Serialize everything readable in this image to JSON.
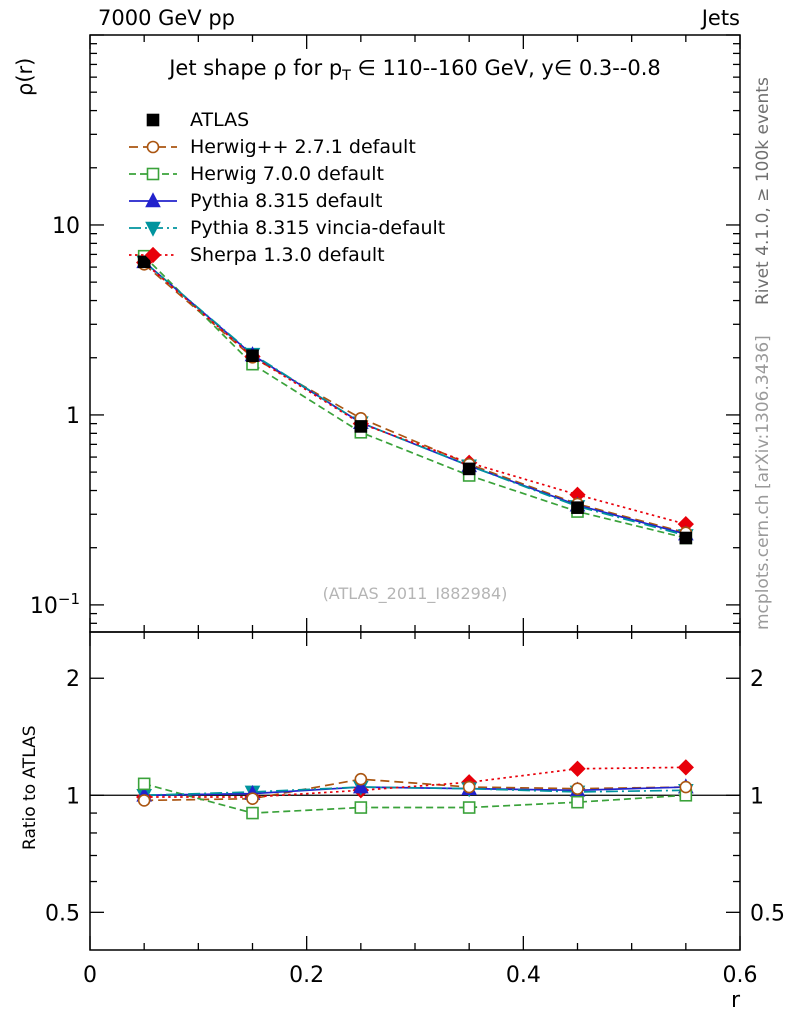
{
  "header": {
    "left_label": "7000 GeV pp",
    "right_label": "Jets"
  },
  "side_labels": {
    "rivet": "Rivet 4.1.0, ≥ 100k events",
    "mcplots": "mcplots.cern.ch [arXiv:1306.3436]"
  },
  "watermark": "(ATLAS_2011_I882984)",
  "title": {
    "pre": "Jet shape ρ for p",
    "sub": "T",
    "post": " ∈ 110--160 GeV, y∈ 0.3--0.8"
  },
  "chart_data": {
    "type": "line",
    "title": "Jet shape ρ for pT ∈ 110--160 GeV, y∈ 0.3--0.8",
    "xlabel": "r",
    "ylabel": "ρ(r)",
    "ratio_ylabel": "Ratio to ATLAS",
    "x": [
      0.05,
      0.15,
      0.25,
      0.35,
      0.45,
      0.55
    ],
    "xlim": [
      0,
      0.6
    ],
    "x_ticks": [
      {
        "v": 0,
        "label": "0"
      },
      {
        "v": 0.2,
        "label": "0.2"
      },
      {
        "v": 0.4,
        "label": "0.4"
      },
      {
        "v": 0.6,
        "label": "0.6"
      }
    ],
    "x_minor_step": 0.05,
    "ylim": [
      0.072,
      100
    ],
    "y_scale": "log",
    "y_ticks": [
      {
        "v": 10,
        "label": "10"
      },
      {
        "v": 1,
        "label": "1"
      },
      {
        "v": 0.1,
        "label": "10",
        "exp": "−1"
      }
    ],
    "ratio_ylim": [
      0.4,
      2.63
    ],
    "ratio_scale": "log",
    "ratio_ticks": [
      {
        "v": 2,
        "label": "2"
      },
      {
        "v": 1,
        "label": "1"
      },
      {
        "v": 0.5,
        "label": "0.5"
      }
    ],
    "ratio_minor_ticks": [
      0.6,
      0.7,
      0.8,
      0.9
    ],
    "series": [
      {
        "name": "ATLAS",
        "color": "#000000",
        "marker": "square",
        "fill": "filled",
        "line": "none",
        "values": [
          6.4,
          2.05,
          0.87,
          0.52,
          0.325,
          0.225
        ],
        "ratio": null
      },
      {
        "name": "Herwig++ 2.7.1 default",
        "color": "#aa5511",
        "marker": "circle",
        "fill": "open",
        "line": "dashed",
        "values": [
          6.21,
          2.01,
          0.96,
          0.55,
          0.34,
          0.24
        ],
        "ratio": [
          0.97,
          0.98,
          1.1,
          1.05,
          1.04,
          1.05
        ]
      },
      {
        "name": "Herwig 7.0.0 default",
        "color": "#3aa23a",
        "marker": "square",
        "fill": "open",
        "line": "dashed2",
        "values": [
          6.85,
          1.85,
          0.81,
          0.48,
          0.31,
          0.225
        ],
        "ratio": [
          1.07,
          0.9,
          0.93,
          0.93,
          0.96,
          1.0
        ]
      },
      {
        "name": "Pythia 8.315 default",
        "color": "#2222cc",
        "marker": "triangle-up",
        "fill": "filled",
        "line": "solid",
        "values": [
          6.4,
          2.07,
          0.91,
          0.54,
          0.335,
          0.236
        ],
        "ratio": [
          1.0,
          1.01,
          1.05,
          1.04,
          1.03,
          1.05
        ]
      },
      {
        "name": "Pythia 8.315 vincia-default",
        "color": "#00949e",
        "marker": "triangle-down",
        "fill": "filled",
        "line": "dashdot",
        "values": [
          6.4,
          2.09,
          0.91,
          0.54,
          0.33,
          0.232
        ],
        "ratio": [
          1.0,
          1.02,
          1.05,
          1.04,
          1.02,
          1.03
        ]
      },
      {
        "name": "Sherpa 1.3.0 default",
        "color": "#e8000a",
        "marker": "diamond",
        "fill": "filled",
        "line": "dotted",
        "values": [
          6.34,
          2.03,
          0.9,
          0.56,
          0.38,
          0.266
        ],
        "ratio": [
          0.99,
          0.99,
          1.03,
          1.08,
          1.17,
          1.18
        ]
      }
    ]
  }
}
